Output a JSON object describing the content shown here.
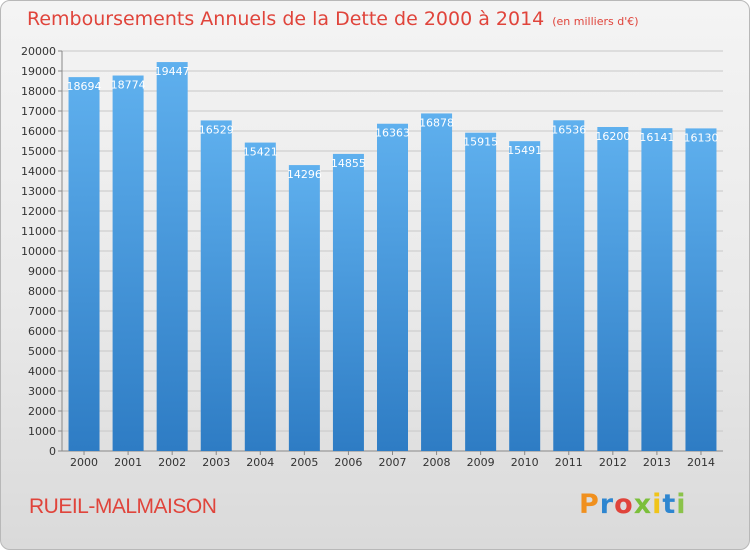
{
  "title": "Remboursements Annuels de la Dette de 2000 à 2014",
  "subtitle": "(en milliers d'€)",
  "city": "RUEIL-MALMAISON",
  "brand": "Proxiti",
  "brand_colors": [
    "#f0901e",
    "#2e86d0",
    "#e0443b",
    "#7bbf3a",
    "#f0c419",
    "#2e86d0",
    "#8bc34a"
  ],
  "colors": {
    "title": "#e0443b",
    "bar_top": "#5fb0ee",
    "bar_bottom": "#2e7cc4",
    "grid": "#c8c8c8"
  },
  "chart_data": {
    "type": "bar",
    "categories": [
      "2000",
      "2001",
      "2002",
      "2003",
      "2004",
      "2005",
      "2006",
      "2007",
      "2008",
      "2009",
      "2010",
      "2011",
      "2012",
      "2013",
      "2014"
    ],
    "values": [
      18694,
      18774,
      19447,
      16529,
      15421,
      14296,
      14855,
      16363,
      16878,
      15915,
      15491,
      16536,
      16200,
      16141,
      16130
    ],
    "ylim": [
      0,
      20000
    ],
    "ytick_step": 1000,
    "grid": true,
    "data_labels": true
  }
}
